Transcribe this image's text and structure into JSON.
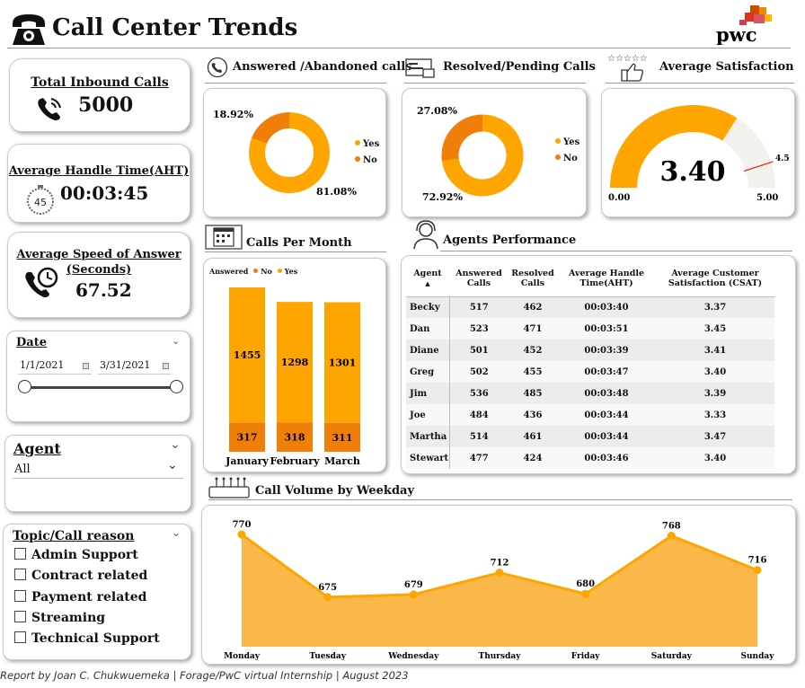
{
  "header": {
    "title": "Call Center Trends",
    "logo_text": "pwc"
  },
  "kpis": {
    "total_inbound": {
      "label": "Total Inbound Calls",
      "value": "5000",
      "icon": "phone-ringing-icon"
    },
    "aht": {
      "label": "Average Handle Time(AHT)",
      "value": "00:03:45",
      "icon": "stopwatch-icon",
      "icon_text": "45"
    },
    "asa": {
      "label_line1": "Average Speed of Answer",
      "label_line2": "(Seconds)",
      "value": "67.52",
      "icon": "phone-clock-icon"
    }
  },
  "filters": {
    "date": {
      "label": "Date",
      "start": "1/1/2021",
      "end": "3/31/2021"
    },
    "agent": {
      "label": "Agent",
      "selected": "All"
    },
    "topic": {
      "label": "Topic/Call reason",
      "options": [
        "Admin Support",
        "Contract related",
        "Payment related",
        "Streaming",
        "Technical Support"
      ]
    }
  },
  "sections": {
    "answered": "Answered /Abandoned calls",
    "resolved": "Resolved/Pending Calls",
    "satisfaction": "Average Satisfaction",
    "calls_per_month": "Calls Per Month",
    "agents_performance": "Agents Performance",
    "weekday": "Call Volume by Weekday"
  },
  "colors": {
    "orange": "#FFA500",
    "dark_orange": "#F07F09",
    "light_orange": "#FBB84A",
    "gauge_track": "#F3F1EE"
  },
  "chart_data": [
    {
      "type": "pie",
      "id": "answered",
      "labels": [
        "Yes",
        "No"
      ],
      "values": [
        81.08,
        18.92
      ],
      "value_labels": [
        "81.08%",
        "18.92%"
      ],
      "legend": [
        "Yes",
        "No"
      ]
    },
    {
      "type": "pie",
      "id": "resolved",
      "labels": [
        "Yes",
        "No"
      ],
      "values": [
        72.92,
        27.08
      ],
      "value_labels": [
        "72.92%",
        "27.08%"
      ],
      "legend": [
        "Yes",
        "No"
      ]
    },
    {
      "type": "gauge",
      "id": "satisfaction",
      "value": 3.4,
      "value_label": "3.40",
      "min": 0,
      "max": 5,
      "min_label": "0.00",
      "max_label": "5.00",
      "target": 4.5,
      "target_label": "4.5"
    },
    {
      "type": "bar",
      "id": "calls_per_month",
      "stacked": true,
      "categories": [
        "January",
        "February",
        "March"
      ],
      "legend_title": "Answered",
      "series": [
        {
          "name": "No",
          "values": [
            317,
            318,
            311
          ]
        },
        {
          "name": "Yes",
          "values": [
            1455,
            1298,
            1301
          ]
        }
      ]
    },
    {
      "type": "area",
      "id": "weekday",
      "categories": [
        "Monday",
        "Tuesday",
        "Wednesday",
        "Thursday",
        "Friday",
        "Saturday",
        "Sunday"
      ],
      "values": [
        770,
        675,
        679,
        712,
        680,
        768,
        716
      ]
    }
  ],
  "agents_table": {
    "headers": [
      "Agent",
      "Answered Calls",
      "Resolved Calls",
      "Average Handle Time(AHT)",
      "Average Customer Satisfaction (CSAT)"
    ],
    "rows": [
      [
        "Becky",
        "517",
        "462",
        "00:03:40",
        "3.37"
      ],
      [
        "Dan",
        "523",
        "471",
        "00:03:51",
        "3.45"
      ],
      [
        "Diane",
        "501",
        "452",
        "00:03:39",
        "3.41"
      ],
      [
        "Greg",
        "502",
        "455",
        "00:03:47",
        "3.40"
      ],
      [
        "Jim",
        "536",
        "485",
        "00:03:48",
        "3.39"
      ],
      [
        "Joe",
        "484",
        "436",
        "00:03:44",
        "3.33"
      ],
      [
        "Martha",
        "514",
        "461",
        "00:03:44",
        "3.47"
      ],
      [
        "Stewart",
        "477",
        "424",
        "00:03:46",
        "3.40"
      ]
    ]
  },
  "footer": "Report by Joan C. Chukwuemeka | Forage/PwC virtual Internship | August 2023"
}
